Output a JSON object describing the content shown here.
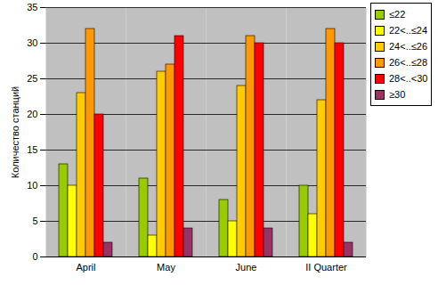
{
  "chart_data": {
    "type": "bar",
    "y_label": "Количество станций",
    "categories": [
      "April",
      "May",
      "June",
      "II Quarter"
    ],
    "series": [
      {
        "name": "≤22",
        "color": "#99cc00",
        "values": [
          13,
          11,
          8,
          10
        ]
      },
      {
        "name": "22<..≤24",
        "color": "#ffff00",
        "values": [
          10,
          3,
          5,
          6
        ]
      },
      {
        "name": "24<..≤26",
        "color": "#ffcc00",
        "values": [
          23,
          26,
          24,
          22
        ]
      },
      {
        "name": "26<..≤28",
        "color": "#ff9900",
        "values": [
          32,
          27,
          31,
          32
        ]
      },
      {
        "name": "28<..<30",
        "color": "#ff0000",
        "values": [
          20,
          31,
          30,
          30
        ]
      },
      {
        "name": "≥30",
        "color": "#993366",
        "values": [
          2,
          4,
          4,
          2
        ]
      }
    ],
    "ylim": [
      0,
      35
    ],
    "yticks": [
      0,
      5,
      10,
      15,
      20,
      25,
      30,
      35
    ],
    "grid": true,
    "legend": "right"
  }
}
